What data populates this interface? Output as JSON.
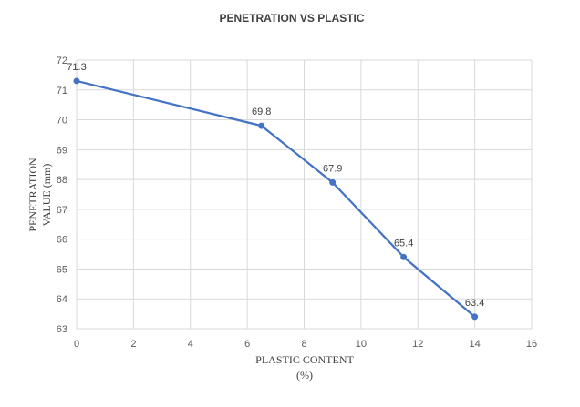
{
  "chart_data": {
    "type": "line",
    "title": "PENETRATION VS PLASTIC",
    "xlabel_lines": [
      "PLASTIC CONTENT",
      "(%)"
    ],
    "ylabel_lines": [
      "PENETRATION",
      "VALUE (mm)"
    ],
    "xlim": [
      0,
      16
    ],
    "ylim": [
      63,
      72
    ],
    "x_ticks": [
      "0",
      "2",
      "4",
      "6",
      "8",
      "10",
      "12",
      "14",
      "16"
    ],
    "y_ticks": [
      "63",
      "64",
      "65",
      "66",
      "67",
      "68",
      "69",
      "70",
      "71",
      "72"
    ],
    "grid": true,
    "legend": "none",
    "series": [
      {
        "x": [
          0,
          6.5,
          9,
          11.5,
          14
        ],
        "y": [
          71.3,
          69.8,
          67.9,
          65.4,
          63.4
        ],
        "labels": [
          "71.3",
          "69.8",
          "67.9",
          "65.4",
          "63.4"
        ],
        "color": "#4472c4"
      }
    ],
    "colors": {
      "grid": "#d9d9d9",
      "background": "#ffffff"
    }
  }
}
